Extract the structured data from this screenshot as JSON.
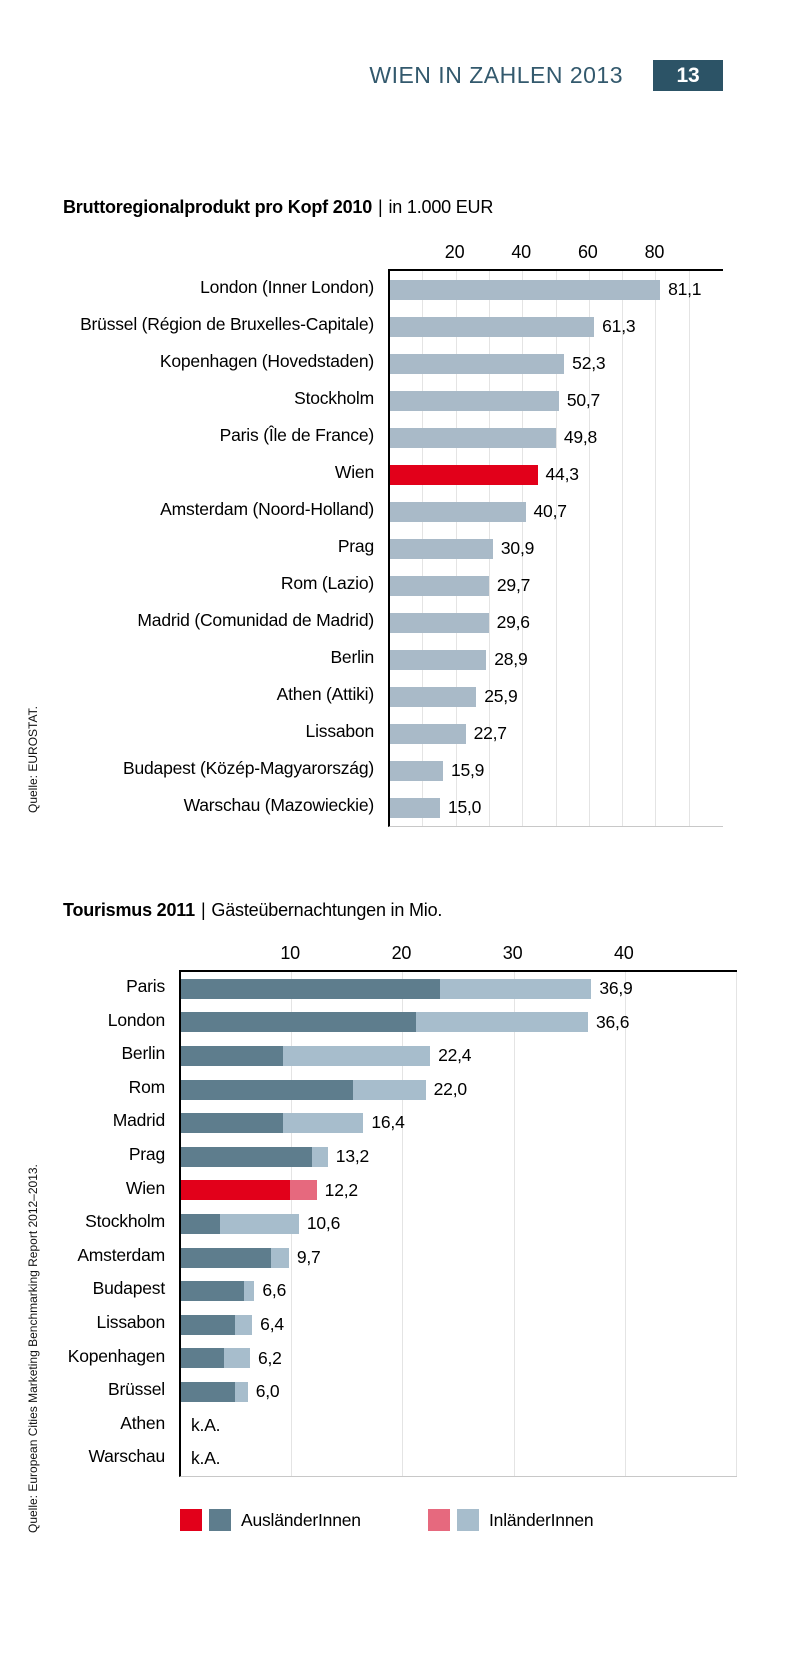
{
  "header": {
    "title": "WIEN IN ZAHLEN 2013",
    "page_number": "13"
  },
  "colors": {
    "header_teal": "#33596d",
    "badge_bg": "#2c5366",
    "bar_blue_gray": "#a9bac8",
    "highlight_red": "#e2001a",
    "foreign_dark": "#5e7d8d",
    "domestic_light": "#a7bdcc",
    "highlight_pink": "#e6697e",
    "gridline": "#e4e4e4",
    "baseline": "#c8c8c8"
  },
  "chart_data": [
    {
      "type": "bar",
      "orientation": "horizontal",
      "title": "Bruttoregionalprodukt pro Kopf 2010",
      "title_separator": "|",
      "subtitle": "in 1.000 EUR",
      "source": "Quelle: EUROSTAT.",
      "xlim": [
        0,
        100
      ],
      "xticks": [
        20,
        40,
        60,
        80
      ],
      "gridlines": [
        10,
        20,
        30,
        40,
        50,
        60,
        70,
        80,
        90
      ],
      "grid": true,
      "highlight_category": "Wien",
      "categories": [
        "London (Inner London)",
        "Brüssel (Région de Bruxelles-Capitale)",
        "Kopenhagen (Hovedstaden)",
        "Stockholm",
        "Paris (Île de France)",
        "Wien",
        "Amsterdam (Noord-Holland)",
        "Prag",
        "Rom (Lazio)",
        "Madrid (Comunidad de Madrid)",
        "Berlin",
        "Athen (Attiki)",
        "Lissabon",
        "Budapest (Közép-Magyarország)",
        "Warschau (Mazowieckie)"
      ],
      "values": [
        81.1,
        61.3,
        52.3,
        50.7,
        49.8,
        44.3,
        40.7,
        30.9,
        29.7,
        29.6,
        28.9,
        25.9,
        22.7,
        15.9,
        15.0
      ],
      "value_labels": [
        "81,1",
        "61,3",
        "52,3",
        "50,7",
        "49,8",
        "44,3",
        "40,7",
        "30,9",
        "29,7",
        "29,6",
        "28,9",
        "25,9",
        "22,7",
        "15,9",
        "15,0"
      ]
    },
    {
      "type": "stacked-bar",
      "orientation": "horizontal",
      "title": "Tourismus 2011",
      "title_separator": "|",
      "subtitle": "Gästeübernachtungen in Mio.",
      "source": "Quelle: European Cities Marketing Benchmarking Report 2012–2013.",
      "xlim": [
        0,
        50
      ],
      "xticks": [
        10,
        20,
        30,
        40
      ],
      "gridlines": [
        10,
        20,
        30,
        40,
        50
      ],
      "grid": true,
      "highlight_category": "Wien",
      "no_data_label": "k.A.",
      "categories": [
        "Paris",
        "London",
        "Berlin",
        "Rom",
        "Madrid",
        "Prag",
        "Wien",
        "Stockholm",
        "Amsterdam",
        "Budapest",
        "Lissabon",
        "Kopenhagen",
        "Brüssel",
        "Athen",
        "Warschau"
      ],
      "series": [
        {
          "name": "AusländerInnen",
          "values": [
            23.3,
            21.1,
            9.2,
            15.5,
            9.2,
            11.8,
            9.8,
            3.5,
            8.1,
            5.7,
            4.9,
            3.9,
            4.9,
            null,
            null
          ]
        },
        {
          "name": "InländerInnen",
          "values": [
            13.6,
            15.5,
            13.2,
            6.5,
            7.2,
            1.4,
            2.4,
            7.1,
            1.6,
            0.9,
            1.5,
            2.3,
            1.1,
            null,
            null
          ]
        }
      ],
      "totals": [
        36.9,
        36.6,
        22.4,
        22.0,
        16.4,
        13.2,
        12.2,
        10.6,
        9.7,
        6.6,
        6.4,
        6.2,
        6.0,
        null,
        null
      ],
      "total_labels": [
        "36,9",
        "36,6",
        "22,4",
        "22,0",
        "16,4",
        "13,2",
        "12,2",
        "10,6",
        "9,7",
        "6,6",
        "6,4",
        "6,2",
        "6,0",
        "k.A.",
        "k.A."
      ],
      "legend": [
        {
          "label": "AusländerInnen",
          "colors": [
            "#e2001a",
            "#5e7d8d"
          ]
        },
        {
          "label": "InländerInnen",
          "colors": [
            "#e6697e",
            "#a7bdcc"
          ]
        }
      ]
    }
  ]
}
